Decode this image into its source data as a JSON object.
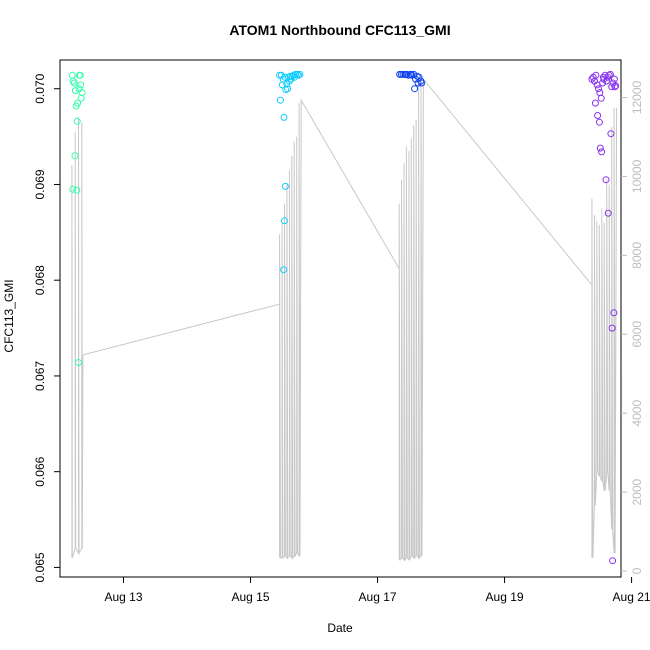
{
  "chart_data": {
    "type": "scatter",
    "title": "ATOM1 Northbound CFC113_GMI",
    "xlabel": "Date",
    "ylabel": "CFC113_GMI",
    "x_range_days": [
      "2016-08-12 00:00",
      "2016-08-20 20:00"
    ],
    "ylim": [
      0.0649,
      0.0703
    ],
    "y2lim": [
      -150,
      12950
    ],
    "x_ticks": [
      {
        "date": "2016-08-13",
        "label": "Aug 13"
      },
      {
        "date": "2016-08-15",
        "label": "Aug 15"
      },
      {
        "date": "2016-08-17",
        "label": "Aug 17"
      },
      {
        "date": "2016-08-19",
        "label": "Aug 19"
      },
      {
        "date": "2016-08-21",
        "label": "Aug 21"
      }
    ],
    "y_ticks": [
      {
        "value": 0.065,
        "label": "0.065"
      },
      {
        "value": 0.066,
        "label": "0.066"
      },
      {
        "value": 0.067,
        "label": "0.067"
      },
      {
        "value": 0.068,
        "label": "0.068"
      },
      {
        "value": 0.069,
        "label": "0.069"
      },
      {
        "value": 0.07,
        "label": "0.070"
      }
    ],
    "y2_ticks": [
      {
        "value": 0,
        "label": "0"
      },
      {
        "value": 2000,
        "label": "2000"
      },
      {
        "value": 4000,
        "label": "4000"
      },
      {
        "value": 6000,
        "label": "6000"
      },
      {
        "value": 8000,
        "label": "8000"
      },
      {
        "value": 10000,
        "label": "10000"
      },
      {
        "value": 12000,
        "label": "12000"
      }
    ],
    "altitude_line_color": "#c8c8c8",
    "series": [
      {
        "color": "#33ffaa",
        "points": [
          [
            "2016-08-12 04:40",
            0.07014
          ],
          [
            "2016-08-12 05:00",
            0.07008
          ],
          [
            "2016-08-12 05:20",
            0.07006
          ],
          [
            "2016-08-12 05:50",
            0.06998
          ],
          [
            "2016-08-12 06:10",
            0.06982
          ],
          [
            "2016-08-12 06:40",
            0.06985
          ],
          [
            "2016-08-12 07:20",
            0.07014
          ],
          [
            "2016-08-12 07:40",
            0.07014
          ],
          [
            "2016-08-12 07:50",
            0.07004
          ],
          [
            "2016-08-12 07:10",
            0.07
          ],
          [
            "2016-08-12 06:30",
            0.06966
          ],
          [
            "2016-08-12 05:40",
            0.0693
          ],
          [
            "2016-08-12 04:50",
            0.06895
          ],
          [
            "2016-08-12 06:20",
            0.06894
          ],
          [
            "2016-08-12 07:00",
            0.06714
          ],
          [
            "2016-08-12 08:00",
            0.0699
          ],
          [
            "2016-08-12 08:20",
            0.06996
          ]
        ]
      },
      {
        "color": "#11ccff",
        "points": [
          [
            "2016-08-15 11:00",
            0.07014
          ],
          [
            "2016-08-15 11:40",
            0.07014
          ],
          [
            "2016-08-15 12:20",
            0.0701
          ],
          [
            "2016-08-15 13:00",
            0.07012
          ],
          [
            "2016-08-15 13:40",
            0.07005
          ],
          [
            "2016-08-15 14:20",
            0.07012
          ],
          [
            "2016-08-15 15:00",
            0.07013
          ],
          [
            "2016-08-15 15:40",
            0.07013
          ],
          [
            "2016-08-15 16:20",
            0.07014
          ],
          [
            "2016-08-15 17:00",
            0.07015
          ],
          [
            "2016-08-15 17:40",
            0.07015
          ],
          [
            "2016-08-15 18:10",
            0.07014
          ],
          [
            "2016-08-15 18:40",
            0.07015
          ],
          [
            "2016-08-15 12:00",
            0.07004
          ],
          [
            "2016-08-15 13:20",
            0.06999
          ],
          [
            "2016-08-15 14:00",
            0.07
          ],
          [
            "2016-08-15 14:40",
            0.07008
          ],
          [
            "2016-08-15 11:20",
            0.06988
          ],
          [
            "2016-08-15 12:40",
            0.0697
          ],
          [
            "2016-08-15 13:10",
            0.06898
          ],
          [
            "2016-08-15 12:50",
            0.06862
          ],
          [
            "2016-08-15 12:30",
            0.06811
          ],
          [
            "2016-08-15 15:20",
            0.0701
          ],
          [
            "2016-08-15 16:40",
            0.07012
          ]
        ]
      },
      {
        "color": "#1144ee",
        "points": [
          [
            "2016-08-17 08:20",
            0.07015
          ],
          [
            "2016-08-17 09:00",
            0.07015
          ],
          [
            "2016-08-17 09:40",
            0.07015
          ],
          [
            "2016-08-17 10:20",
            0.07015
          ],
          [
            "2016-08-17 11:00",
            0.07015
          ],
          [
            "2016-08-17 11:40",
            0.07014
          ],
          [
            "2016-08-17 12:20",
            0.07015
          ],
          [
            "2016-08-17 13:00",
            0.07014
          ],
          [
            "2016-08-17 13:40",
            0.07015
          ],
          [
            "2016-08-17 14:20",
            0.0701
          ],
          [
            "2016-08-17 15:00",
            0.07013
          ],
          [
            "2016-08-17 15:40",
            0.07012
          ],
          [
            "2016-08-17 16:20",
            0.07008
          ],
          [
            "2016-08-17 14:00",
            0.07
          ],
          [
            "2016-08-17 15:20",
            0.07006
          ],
          [
            "2016-08-17 16:40",
            0.07006
          ],
          [
            "2016-08-17 10:40",
            0.07015
          ],
          [
            "2016-08-17 12:40",
            0.07015
          ]
        ]
      },
      {
        "color": "#8833ee",
        "points": [
          [
            "2016-08-20 09:00",
            0.0701
          ],
          [
            "2016-08-20 09:30",
            0.07012
          ],
          [
            "2016-08-20 10:00",
            0.07008
          ],
          [
            "2016-08-20 10:30",
            0.07014
          ],
          [
            "2016-08-20 11:00",
            0.07004
          ],
          [
            "2016-08-20 11:30",
            0.07
          ],
          [
            "2016-08-20 12:00",
            0.06996
          ],
          [
            "2016-08-20 12:30",
            0.0699
          ],
          [
            "2016-08-20 13:00",
            0.07006
          ],
          [
            "2016-08-20 13:30",
            0.0701
          ],
          [
            "2016-08-20 14:00",
            0.07014
          ],
          [
            "2016-08-20 14:30",
            0.07008
          ],
          [
            "2016-08-20 15:00",
            0.07012
          ],
          [
            "2016-08-20 15:30",
            0.07014
          ],
          [
            "2016-08-20 16:00",
            0.07015
          ],
          [
            "2016-08-20 16:30",
            0.07002
          ],
          [
            "2016-08-20 17:00",
            0.07006
          ],
          [
            "2016-08-20 17:30",
            0.0701
          ],
          [
            "2016-08-20 10:20",
            0.06985
          ],
          [
            "2016-08-20 11:10",
            0.06972
          ],
          [
            "2016-08-20 11:50",
            0.06965
          ],
          [
            "2016-08-20 12:10",
            0.06938
          ],
          [
            "2016-08-20 12:40",
            0.06934
          ],
          [
            "2016-08-20 14:20",
            0.06905
          ],
          [
            "2016-08-20 15:10",
            0.0687
          ],
          [
            "2016-08-20 16:10",
            0.06953
          ],
          [
            "2016-08-20 16:40",
            0.0675
          ],
          [
            "2016-08-20 17:20",
            0.06766
          ],
          [
            "2016-08-20 16:50",
            0.06507
          ],
          [
            "2016-08-20 13:20",
            0.07012
          ],
          [
            "2016-08-20 17:40",
            0.07002
          ],
          [
            "2016-08-20 18:00",
            0.07003
          ]
        ]
      }
    ],
    "altitude_segments": [
      {
        "t_start": "2016-08-12 04:30",
        "t_end": "2016-08-12 08:40",
        "profiles": [
          [
            0.0651,
            0.0692
          ],
          [
            0.0652,
            0.06955
          ],
          [
            0.06515,
            0.0697
          ],
          [
            0.0652,
            0.06965
          ]
        ],
        "end_value": 0.06722
      },
      {
        "t_start": "2016-08-15 11:00",
        "t_end": "2016-08-15 19:10",
        "start_value": 0.06775,
        "profiles": [
          [
            0.0651,
            0.06848
          ],
          [
            0.0651,
            0.0686
          ],
          [
            0.06512,
            0.0688
          ],
          [
            0.0651,
            0.069
          ],
          [
            0.06512,
            0.06915
          ],
          [
            0.0651,
            0.0693
          ],
          [
            0.06512,
            0.06945
          ],
          [
            0.06515,
            0.0695
          ],
          [
            0.06512,
            0.06985
          ]
        ],
        "end_value": 0.06988
      },
      {
        "t_start": "2016-08-17 08:10",
        "t_end": "2016-08-17 17:20",
        "start_value": 0.06812,
        "profiles": [
          [
            0.06508,
            0.0688
          ],
          [
            0.0651,
            0.06905
          ],
          [
            0.06508,
            0.06922
          ],
          [
            0.0651,
            0.0694
          ],
          [
            0.06508,
            0.06935
          ],
          [
            0.06512,
            0.06948
          ],
          [
            0.0651,
            0.06962
          ],
          [
            0.06512,
            0.06968
          ],
          [
            0.0651,
            0.07008
          ],
          [
            0.06512,
            0.07012
          ]
        ],
        "end_value": 0.0701
      },
      {
        "t_start": "2016-08-20 09:00",
        "t_end": "2016-08-20 18:20",
        "start_value": 0.06795,
        "profiles": [
          [
            0.0651,
            0.06885
          ],
          [
            0.06565,
            0.06868
          ],
          [
            0.066,
            0.06862
          ],
          [
            0.06595,
            0.06858
          ],
          [
            0.0659,
            0.06875
          ],
          [
            0.0658,
            0.0686
          ],
          [
            0.066,
            0.06905
          ],
          [
            0.0658,
            0.069
          ],
          [
            0.0654,
            0.0696
          ],
          [
            0.06515,
            0.0698
          ]
        ],
        "end_value": 0.0698
      }
    ]
  }
}
